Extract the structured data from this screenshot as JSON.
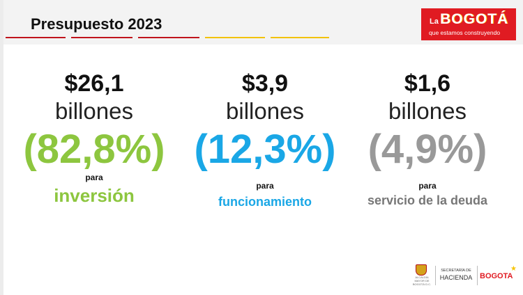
{
  "header": {
    "title": "Presupuesto 2023",
    "rule_colors": [
      "#c0141c",
      "#c0141c",
      "#c0141c",
      "#f2c200",
      "#f2c200"
    ]
  },
  "logo": {
    "prefix": "La",
    "name": "BOGOTÁ",
    "tagline": "que estamos construyendo",
    "bg_color": "#e01b22"
  },
  "columns": [
    {
      "amount": "$26,1",
      "unit": "billones",
      "percent": "(82,8%)",
      "para": "para",
      "purpose": "inversión",
      "color": "#8dc63f"
    },
    {
      "amount": "$3,9",
      "unit": "billones",
      "percent": "(12,3%)",
      "para": "para",
      "purpose": "funcionamiento",
      "color": "#1aa7e6"
    },
    {
      "amount": "$1,6",
      "unit": "billones",
      "percent": "(4,9%)",
      "para": "para",
      "purpose": "servicio de la deuda",
      "color": "#999999"
    }
  ],
  "footer": {
    "crest_text": "ALCALDÍA MAYOR DE BOGOTÁ D.C.",
    "secretaria_small": "SECRETARÍA DE",
    "secretaria_big": "HACIENDA",
    "bogota": "BOGOTA",
    "icons": [
      "crest-icon",
      "star-icon"
    ]
  }
}
